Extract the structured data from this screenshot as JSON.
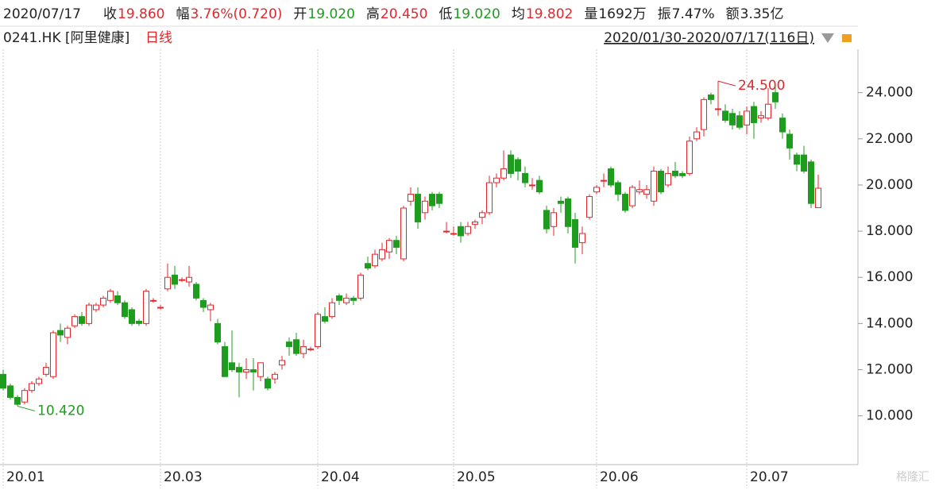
{
  "header": {
    "date": "2020/07/17",
    "items": [
      {
        "label": "收",
        "value": "19.860",
        "color": "#e4262c"
      },
      {
        "label": "幅",
        "value": "3.76%(0.720)",
        "color": "#e4262c"
      },
      {
        "label": "开",
        "value": "19.020",
        "color": "#1e9c1e"
      },
      {
        "label": "高",
        "value": "20.450",
        "color": "#e4262c"
      },
      {
        "label": "低",
        "value": "19.020",
        "color": "#1e9c1e"
      },
      {
        "label": "均",
        "value": "19.802",
        "color": "#e4262c"
      },
      {
        "label": "量",
        "value": "1692万",
        "color": "#222222"
      },
      {
        "label": "振",
        "value": "7.47%",
        "color": "#222222"
      },
      {
        "label": "额",
        "value": "3.35亿",
        "color": "#222222"
      }
    ],
    "symbol": "0241.HK [阿里健康]",
    "period": "日线",
    "range": "2020/01/30-2020/07/17(116日)",
    "watermark": "格隆汇"
  },
  "chart_data": {
    "type": "candlestick",
    "up_color": "#e4262c",
    "down_color": "#1e9c1e",
    "ylim": [
      7.89,
      25.88
    ],
    "yticks": [
      {
        "value": 10,
        "label": "10.000"
      },
      {
        "value": 12,
        "label": "12.000"
      },
      {
        "value": 14,
        "label": "14.000"
      },
      {
        "value": 16,
        "label": "16.000"
      },
      {
        "value": 18,
        "label": "18.000"
      },
      {
        "value": 20,
        "label": "20.000"
      },
      {
        "value": 22,
        "label": "22.000"
      },
      {
        "value": 24,
        "label": "24.000"
      }
    ],
    "categories": [
      "20.01",
      null,
      null,
      null,
      null,
      null,
      null,
      null,
      null,
      null,
      null,
      null,
      null,
      null,
      null,
      null,
      null,
      null,
      null,
      null,
      null,
      null,
      "20.03",
      null,
      null,
      null,
      null,
      null,
      null,
      null,
      null,
      null,
      null,
      null,
      null,
      null,
      null,
      null,
      null,
      null,
      null,
      null,
      null,
      null,
      "20.04",
      null,
      null,
      null,
      null,
      null,
      null,
      null,
      null,
      null,
      null,
      null,
      null,
      null,
      null,
      null,
      null,
      null,
      null,
      "20.05",
      null,
      null,
      null,
      null,
      null,
      null,
      null,
      null,
      null,
      null,
      null,
      null,
      null,
      null,
      null,
      null,
      null,
      null,
      null,
      "20.06",
      null,
      null,
      null,
      null,
      null,
      null,
      null,
      null,
      null,
      null,
      null,
      null,
      null,
      null,
      null,
      null,
      null,
      null,
      null,
      null,
      "20.07",
      null,
      null,
      null,
      null,
      null,
      null,
      null,
      null,
      null,
      null
    ],
    "candles": [
      [
        11.8,
        12.0,
        11.1,
        11.2
      ],
      [
        11.3,
        11.4,
        10.7,
        10.8
      ],
      [
        10.8,
        10.9,
        10.42,
        10.5
      ],
      [
        10.6,
        11.2,
        10.5,
        11.1
      ],
      [
        11.1,
        11.5,
        11.0,
        11.4
      ],
      [
        11.4,
        11.7,
        11.3,
        11.6
      ],
      [
        11.8,
        12.3,
        11.7,
        12.1
      ],
      [
        11.7,
        13.7,
        11.6,
        13.6
      ],
      [
        13.7,
        14.0,
        13.2,
        13.5
      ],
      [
        13.4,
        13.9,
        13.1,
        13.8
      ],
      [
        13.9,
        14.4,
        13.8,
        14.3
      ],
      [
        14.3,
        14.5,
        13.9,
        14.0
      ],
      [
        14.0,
        14.9,
        13.9,
        14.8
      ],
      [
        14.6,
        14.9,
        14.5,
        14.8
      ],
      [
        14.8,
        15.2,
        14.7,
        15.1
      ],
      [
        15.0,
        15.5,
        14.9,
        15.4
      ],
      [
        15.2,
        15.4,
        14.8,
        14.9
      ],
      [
        14.9,
        15.0,
        14.2,
        14.3
      ],
      [
        14.6,
        14.7,
        13.9,
        14.0
      ],
      [
        14.1,
        14.2,
        13.9,
        14.0
      ],
      [
        14.0,
        15.5,
        13.9,
        15.4
      ],
      [
        15.0,
        15.1,
        14.9,
        15.0
      ],
      [
        14.7,
        14.8,
        14.6,
        14.7
      ],
      [
        15.5,
        16.6,
        15.4,
        16.0
      ],
      [
        16.1,
        16.5,
        15.5,
        15.7
      ],
      [
        15.9,
        16.0,
        15.8,
        15.9
      ],
      [
        15.8,
        16.5,
        15.6,
        16.0
      ],
      [
        15.7,
        15.8,
        15.0,
        15.1
      ],
      [
        15.0,
        15.1,
        14.5,
        14.7
      ],
      [
        14.6,
        14.9,
        14.1,
        14.8
      ],
      [
        14.0,
        14.2,
        13.1,
        13.2
      ],
      [
        13.0,
        13.2,
        11.7,
        11.7
      ],
      [
        12.3,
        13.7,
        11.9,
        12.0
      ],
      [
        12.1,
        12.3,
        10.8,
        11.9
      ],
      [
        11.9,
        12.5,
        11.6,
        12.0
      ],
      [
        12.0,
        12.5,
        11.1,
        11.9
      ],
      [
        11.7,
        12.3,
        11.5,
        12.3
      ],
      [
        11.6,
        11.7,
        11.1,
        11.2
      ],
      [
        11.6,
        11.9,
        11.4,
        11.8
      ],
      [
        12.2,
        12.6,
        12.0,
        12.4
      ],
      [
        13.2,
        13.4,
        12.6,
        13.0
      ],
      [
        13.3,
        13.6,
        12.6,
        12.7
      ],
      [
        12.7,
        13.3,
        12.5,
        13.0
      ],
      [
        12.9,
        13.0,
        12.8,
        12.9
      ],
      [
        13.0,
        14.5,
        12.9,
        14.4
      ],
      [
        14.3,
        14.7,
        14.0,
        14.1
      ],
      [
        14.3,
        15.1,
        14.2,
        14.9
      ],
      [
        15.2,
        15.3,
        14.8,
        15.0
      ],
      [
        14.9,
        15.3,
        14.8,
        15.1
      ],
      [
        15.1,
        15.2,
        14.8,
        15.0
      ],
      [
        15.1,
        16.2,
        15.0,
        16.1
      ],
      [
        16.6,
        16.9,
        16.3,
        16.4
      ],
      [
        16.5,
        17.2,
        16.4,
        17.0
      ],
      [
        16.8,
        17.5,
        16.7,
        17.2
      ],
      [
        17.1,
        17.7,
        16.8,
        17.6
      ],
      [
        17.6,
        17.8,
        17.0,
        17.3
      ],
      [
        16.8,
        19.1,
        16.7,
        19.0
      ],
      [
        19.3,
        19.9,
        19.1,
        19.6
      ],
      [
        19.6,
        19.9,
        18.1,
        18.4
      ],
      [
        18.8,
        19.5,
        18.5,
        19.3
      ],
      [
        19.6,
        19.7,
        18.9,
        19.1
      ],
      [
        19.6,
        19.7,
        19.0,
        19.2
      ],
      [
        18.0,
        18.4,
        17.9,
        18.0
      ],
      [
        17.9,
        18.2,
        17.8,
        17.9
      ],
      [
        18.2,
        18.4,
        17.5,
        17.8
      ],
      [
        17.9,
        18.4,
        17.8,
        18.2
      ],
      [
        18.3,
        18.5,
        18.1,
        18.4
      ],
      [
        18.6,
        18.9,
        18.3,
        18.8
      ],
      [
        18.8,
        20.4,
        18.7,
        20.1
      ],
      [
        20.1,
        20.5,
        19.9,
        20.3
      ],
      [
        20.3,
        21.5,
        20.2,
        20.7
      ],
      [
        21.3,
        21.5,
        20.3,
        20.5
      ],
      [
        21.1,
        21.2,
        20.2,
        20.6
      ],
      [
        20.5,
        20.8,
        19.9,
        20.1
      ],
      [
        20.0,
        20.3,
        19.8,
        20.0
      ],
      [
        20.2,
        20.4,
        19.6,
        19.7
      ],
      [
        18.9,
        19.1,
        17.9,
        18.1
      ],
      [
        18.2,
        19.0,
        17.8,
        18.8
      ],
      [
        19.3,
        19.5,
        18.8,
        19.2
      ],
      [
        19.4,
        19.5,
        17.9,
        18.2
      ],
      [
        18.5,
        18.8,
        16.6,
        17.3
      ],
      [
        17.5,
        18.2,
        17.0,
        17.9
      ],
      [
        18.6,
        19.6,
        18.5,
        19.5
      ],
      [
        19.7,
        20.0,
        19.6,
        19.9
      ],
      [
        20.2,
        20.5,
        19.9,
        20.2
      ],
      [
        20.7,
        20.8,
        19.9,
        20.0
      ],
      [
        20.1,
        20.2,
        19.3,
        19.6
      ],
      [
        19.6,
        19.7,
        18.8,
        18.9
      ],
      [
        19.1,
        20.0,
        19.0,
        19.9
      ],
      [
        19.7,
        20.2,
        19.6,
        19.8
      ],
      [
        19.6,
        20.0,
        19.4,
        19.8
      ],
      [
        19.3,
        20.8,
        19.1,
        20.6
      ],
      [
        20.6,
        20.7,
        19.6,
        19.7
      ],
      [
        20.0,
        20.8,
        19.9,
        20.5
      ],
      [
        20.6,
        21.0,
        20.3,
        20.4
      ],
      [
        20.5,
        20.6,
        20.3,
        20.4
      ],
      [
        20.5,
        22.1,
        20.4,
        21.9
      ],
      [
        22.0,
        22.5,
        21.9,
        22.3
      ],
      [
        22.4,
        23.8,
        22.1,
        23.7
      ],
      [
        23.9,
        24.0,
        23.5,
        23.7
      ],
      [
        23.3,
        24.5,
        23.0,
        23.3
      ],
      [
        23.2,
        23.5,
        22.7,
        22.8
      ],
      [
        23.1,
        23.3,
        22.4,
        22.6
      ],
      [
        23.0,
        23.2,
        22.4,
        22.5
      ],
      [
        22.6,
        23.4,
        22.2,
        23.2
      ],
      [
        23.4,
        23.6,
        22.0,
        22.7
      ],
      [
        22.9,
        23.2,
        22.7,
        23.0
      ],
      [
        22.9,
        24.2,
        22.8,
        23.5
      ],
      [
        24.0,
        24.3,
        23.3,
        23.6
      ],
      [
        22.9,
        23.1,
        22.0,
        22.3
      ],
      [
        22.2,
        22.4,
        21.1,
        21.6
      ],
      [
        21.3,
        21.4,
        20.6,
        20.9
      ],
      [
        21.3,
        21.7,
        20.5,
        20.6
      ],
      [
        21.0,
        21.1,
        19.0,
        19.2
      ],
      [
        19.02,
        20.45,
        19.02,
        19.86
      ]
    ],
    "annotations": [
      {
        "value": 24.5,
        "label": "24.500",
        "color": "#e4262c"
      },
      {
        "value": 10.42,
        "label": "10.420",
        "color": "#1e9c1e"
      }
    ]
  }
}
